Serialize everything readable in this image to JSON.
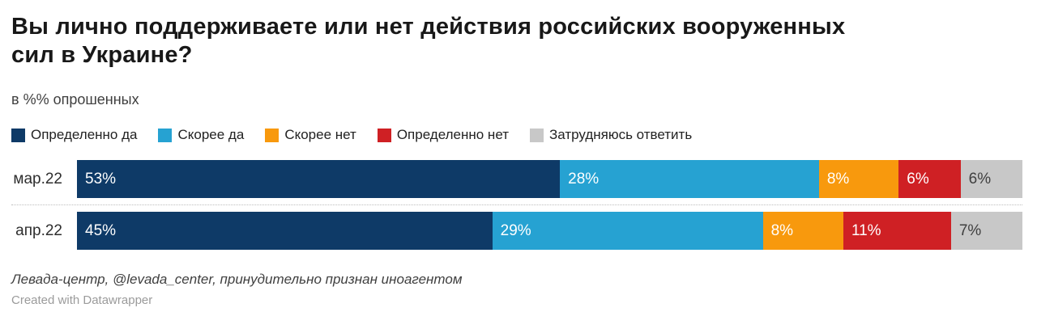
{
  "title_lines": {
    "line1": "Вы лично поддерживаете или нет действия российских вооруженных",
    "line2": "сил в Украине?"
  },
  "subtitle": "в %% опрошенных",
  "footer": {
    "source": "Левада-центр, @levada_center, принудительно признан иноагентом",
    "attribution": "Created with Datawrapper"
  },
  "colors": {
    "background": "#ffffff",
    "title_text": "#181818",
    "label_dark": "#3f3f3f",
    "label_light": "#ffffff",
    "separator": "#bdbdbd"
  },
  "chart_data": {
    "type": "bar",
    "stacked": true,
    "orientation": "horizontal",
    "title": "Вы лично поддерживаете или нет действия российских вооруженных сил в Украине?",
    "subtitle": "в %% опрошенных",
    "categories": [
      "мар.22",
      "апр.22"
    ],
    "series": [
      {
        "name": "Определенно да",
        "color": "#0e3a67",
        "values": [
          53,
          45
        ]
      },
      {
        "name": "Скорее да",
        "color": "#26a2d2",
        "values": [
          28,
          29
        ]
      },
      {
        "name": "Скорее нет",
        "color": "#f8990d",
        "values": [
          8,
          8
        ]
      },
      {
        "name": "Определенно нет",
        "color": "#cf2024",
        "values": [
          6,
          11
        ]
      },
      {
        "name": "Затрудняюсь ответить",
        "color": "#c8c8c8",
        "values": [
          6,
          7
        ]
      }
    ],
    "value_suffix": "%",
    "legend_position": "top",
    "grid": "dotted-row-separator",
    "xlim": [
      0,
      101
    ]
  }
}
